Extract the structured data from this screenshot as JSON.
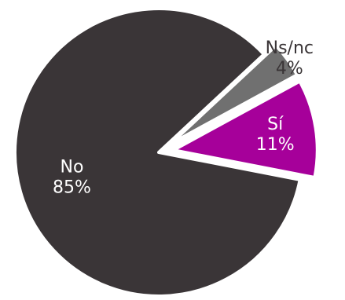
{
  "chart_data": {
    "type": "pie",
    "title": "",
    "start_angle_deg": -11,
    "direction": "counterclockwise",
    "slices": [
      {
        "label": "Sí",
        "value": 11,
        "display": "11%",
        "color": "#A6009A",
        "label_color": "#FFFFFF",
        "label_position": "inside"
      },
      {
        "label": "Ns/nc",
        "value": 4,
        "display": "4%",
        "color": "#707070",
        "label_color": "#3A3537",
        "label_position": "outside"
      },
      {
        "label": "No",
        "value": 85,
        "display": "85%",
        "color": "#3A3537",
        "label_color": "#FFFFFF",
        "label_position": "inside"
      }
    ]
  }
}
